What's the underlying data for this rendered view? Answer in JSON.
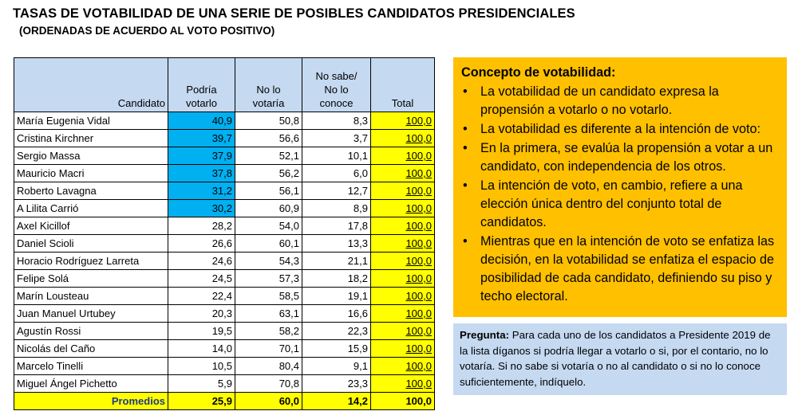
{
  "title": "TASAS DE VOTABILIDAD DE UNA SERIE DE POSIBLES CANDIDATOS PRESIDENCIALES",
  "subtitle": "(ORDENADAS DE ACUERDO AL VOTO POSITIVO)",
  "table": {
    "headers": {
      "candidato": "Candidato",
      "podria_1": "Podría",
      "podria_2": "votarlo",
      "nolo_1": "No lo",
      "nolo_2": "votaría",
      "nosabe_1": "No sabe/",
      "nosabe_2": "No lo",
      "nosabe_3": "conoce",
      "total": "Total"
    },
    "rows": [
      {
        "name": "María Eugenia Vidal",
        "podria": "40,9",
        "no_votaria": "50,8",
        "no_sabe": "8,3",
        "total": "100,0",
        "highlight": true
      },
      {
        "name": "Cristina Kirchner",
        "podria": "39,7",
        "no_votaria": "56,6",
        "no_sabe": "3,7",
        "total": "100,0",
        "highlight": true
      },
      {
        "name": "Sergio Massa",
        "podria": "37,9",
        "no_votaria": "52,1",
        "no_sabe": "10,1",
        "total": "100,0",
        "highlight": true
      },
      {
        "name": "Mauricio Macri",
        "podria": "37,8",
        "no_votaria": "56,2",
        "no_sabe": "6,0",
        "total": "100,0",
        "highlight": true
      },
      {
        "name": "Roberto Lavagna",
        "podria": "31,2",
        "no_votaria": "56,1",
        "no_sabe": "12,7",
        "total": "100,0",
        "highlight": true
      },
      {
        "name": "A Lilita Carrió",
        "podria": "30,2",
        "no_votaria": "60,9",
        "no_sabe": "8,9",
        "total": "100,0",
        "highlight": true
      },
      {
        "name": "Axel Kicillof",
        "podria": "28,2",
        "no_votaria": "54,0",
        "no_sabe": "17,8",
        "total": "100,0",
        "highlight": false
      },
      {
        "name": "Daniel Scioli",
        "podria": "26,6",
        "no_votaria": "60,1",
        "no_sabe": "13,3",
        "total": "100,0",
        "highlight": false
      },
      {
        "name": "Horacio Rodríguez Larreta",
        "podria": "24,6",
        "no_votaria": "54,3",
        "no_sabe": "21,1",
        "total": "100,0",
        "highlight": false
      },
      {
        "name": "Felipe Solá",
        "podria": "24,5",
        "no_votaria": "57,3",
        "no_sabe": "18,2",
        "total": "100,0",
        "highlight": false
      },
      {
        "name": "Marín Lousteau",
        "podria": "22,4",
        "no_votaria": "58,5",
        "no_sabe": "19,1",
        "total": "100,0",
        "highlight": false
      },
      {
        "name": "Juan Manuel Urtubey",
        "podria": "20,3",
        "no_votaria": "63,1",
        "no_sabe": "16,6",
        "total": "100,0",
        "highlight": false
      },
      {
        "name": "Agustín Rossi",
        "podria": "19,5",
        "no_votaria": "58,2",
        "no_sabe": "22,3",
        "total": "100,0",
        "highlight": false
      },
      {
        "name": "Nicolás del Caño",
        "podria": "14,0",
        "no_votaria": "70,1",
        "no_sabe": "15,9",
        "total": "100,0",
        "highlight": false
      },
      {
        "name": "Marcelo Tinelli",
        "podria": "10,5",
        "no_votaria": "80,4",
        "no_sabe": "9,1",
        "total": "100,0",
        "highlight": false
      },
      {
        "name": "Miguel Ángel Pichetto",
        "podria": "5,9",
        "no_votaria": "70,8",
        "no_sabe": "23,3",
        "total": "100,0",
        "highlight": false
      }
    ],
    "averages": {
      "label": "Promedios",
      "podria": "25,9",
      "no_votaria": "60,0",
      "no_sabe": "14,2",
      "total": "100,0"
    }
  },
  "concept": {
    "heading": "Concepto de votabilidad:",
    "bullet_glyph": "•",
    "bullets": [
      "La votabilidad de un candidato expresa la propensión a votarlo o no votarlo.",
      "La votabilidad es diferente a la intención de voto:",
      "En la primera, se evalúa la propensión a votar a un candidato, con independencia de los otros.",
      "La intención de voto, en cambio, refiere a una elección única dentro del conjunto total de candidatos.",
      "Mientras que en la intención de voto se enfatiza las decisión, en la votabilidad se enfatiza el espacio de posibilidad de cada candidato, definiendo su piso y techo electoral."
    ]
  },
  "question": {
    "label": "Pregunta:",
    "text": " Para cada uno de los candidatos a Presidente 2019 de la lista díganos si podría llegar a votarlo o si, por el contario, no lo votaría. Si no sabe si votaría o no al candidato o si no lo conoce suficientemente, indíquelo."
  },
  "colors": {
    "header_bg": "#c5d9f1",
    "highlight_blue": "#00b0f0",
    "total_yellow": "#ffff00",
    "concept_bg": "#ffc000",
    "question_bg": "#c5d9f1"
  }
}
